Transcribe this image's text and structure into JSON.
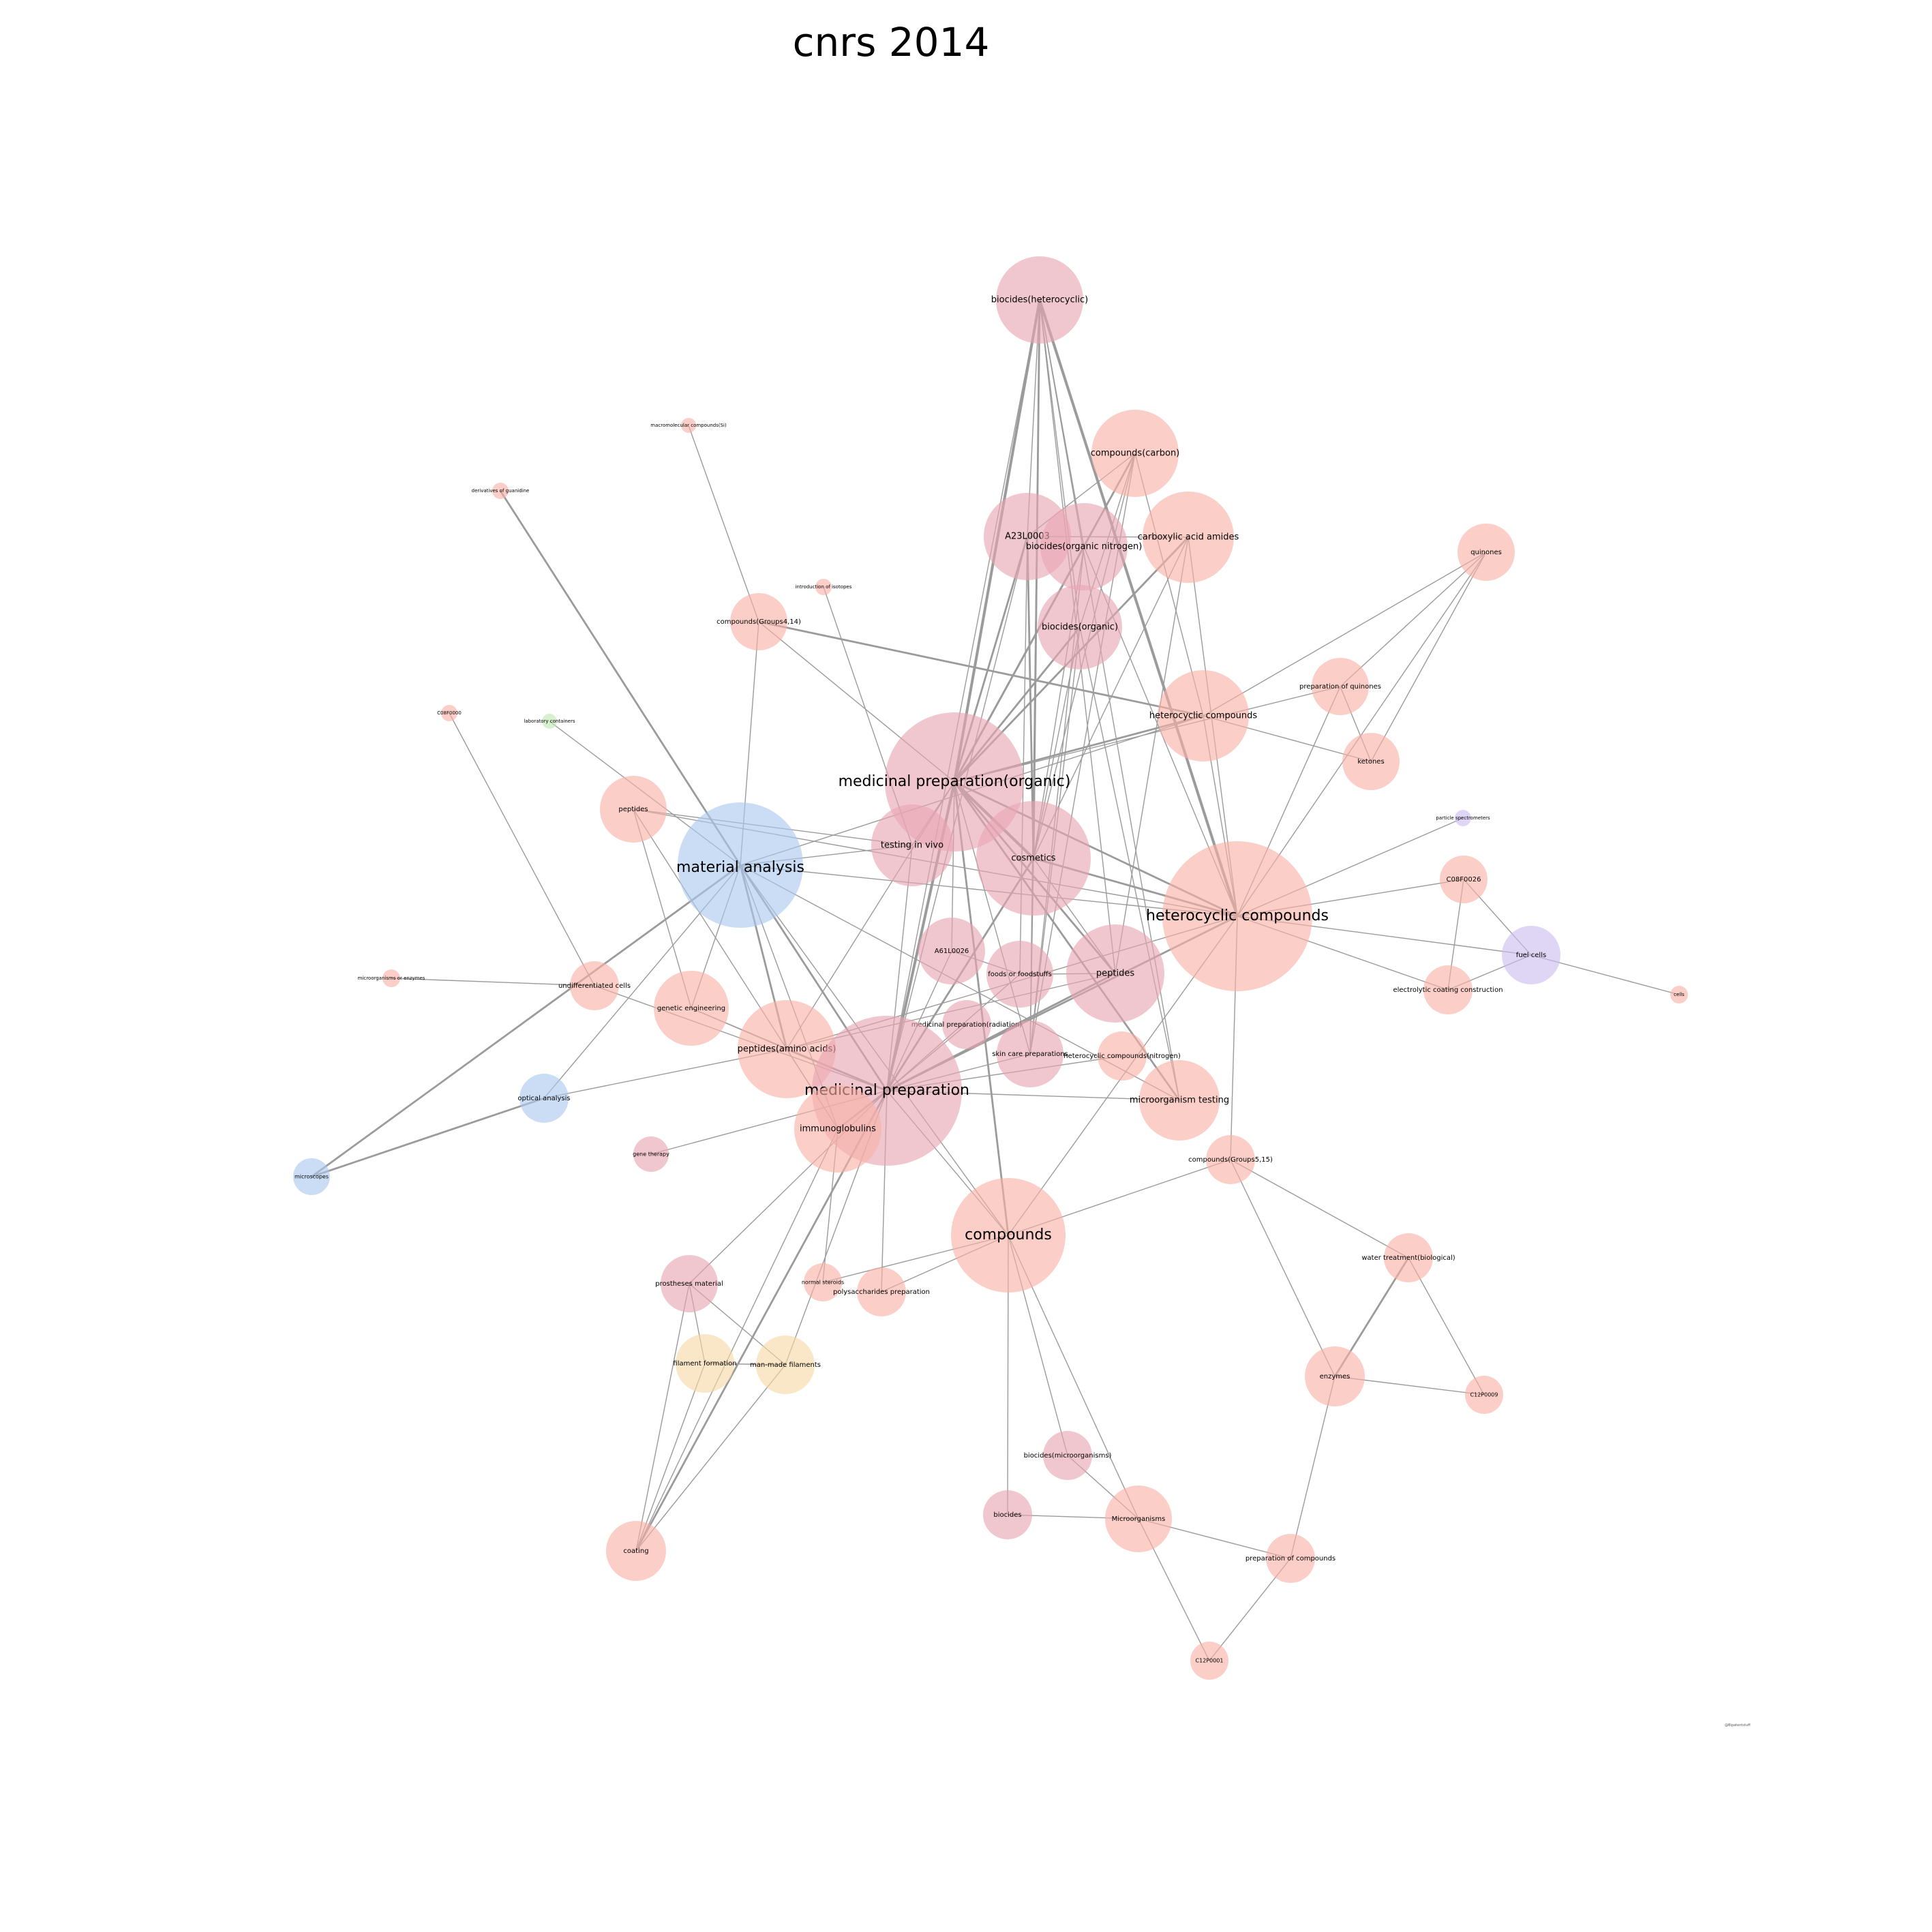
{
  "title": "cnrs 2014",
  "credit": "@Bipatentstuff",
  "colors": {
    "pink": "#e8a4b1",
    "salmon": "#f9b1a6",
    "blue": "#a9c8ef",
    "lavender": "#cbbdef",
    "peach": "#f7d9a6",
    "green": "#bfe6b0",
    "edge": "#9b9b9b"
  },
  "nodes": [
    {
      "id": "biocides_het",
      "label": "biocides(heterocyclic)",
      "color": "pink",
      "size": "l"
    },
    {
      "id": "comp_carbon",
      "label": "compounds(carbon)",
      "color": "salmon",
      "size": "l"
    },
    {
      "id": "a23l",
      "label": "A23L0003",
      "color": "pink",
      "size": "l"
    },
    {
      "id": "biocides_orgn",
      "label": "biocides(organic nitrogen)",
      "color": "pink",
      "size": "l"
    },
    {
      "id": "carbox",
      "label": "carboxylic acid amides",
      "color": "salmon",
      "size": "l"
    },
    {
      "id": "quinones",
      "label": "quinones",
      "color": "salmon",
      "size": "m"
    },
    {
      "id": "biocides_org",
      "label": "biocides(organic)",
      "color": "pink",
      "size": "l"
    },
    {
      "id": "macro_si",
      "label": "macromolecular compounds(Si)",
      "color": "salmon",
      "size": "xs"
    },
    {
      "id": "guanidine",
      "label": "derivatives of guanidine",
      "color": "salmon",
      "size": "xs"
    },
    {
      "id": "isotopes",
      "label": "introduction of isotopes",
      "color": "salmon",
      "size": "xs"
    },
    {
      "id": "comp_g414",
      "label": "compounds(Groups4,14)",
      "color": "salmon",
      "size": "m"
    },
    {
      "id": "prep_quin",
      "label": "preparation of quinones",
      "color": "salmon",
      "size": "m"
    },
    {
      "id": "het_comp_small",
      "label": "heterocyclic compounds",
      "color": "salmon",
      "size": "l"
    },
    {
      "id": "c08f0000",
      "label": "C08F0000",
      "color": "salmon",
      "size": "xs"
    },
    {
      "id": "lab_cont",
      "label": "laboratory containers",
      "color": "green",
      "size": "xs"
    },
    {
      "id": "ketones",
      "label": "ketones",
      "color": "salmon",
      "size": "m"
    },
    {
      "id": "med_prep_org",
      "label": "medicinal preparation(organic)",
      "color": "pink",
      "size": "xl"
    },
    {
      "id": "peptides_small",
      "label": "peptides",
      "color": "salmon",
      "size": "m"
    },
    {
      "id": "particle",
      "label": "particle spectrometers",
      "color": "lavender",
      "size": "xs"
    },
    {
      "id": "testing_vivo",
      "label": "testing in vivo",
      "color": "pink",
      "size": "l"
    },
    {
      "id": "cosmetics",
      "label": "cosmetics",
      "color": "pink",
      "size": "l"
    },
    {
      "id": "material",
      "label": "material analysis",
      "color": "blue",
      "size": "xl"
    },
    {
      "id": "c08f0026",
      "label": "C08F0026",
      "color": "salmon",
      "size": "m"
    },
    {
      "id": "het_comp_big",
      "label": "heterocyclic compounds",
      "color": "salmon",
      "size": "xl"
    },
    {
      "id": "a61l",
      "label": "A61L0026",
      "color": "pink",
      "size": "m"
    },
    {
      "id": "fuel",
      "label": "fuel cells",
      "color": "lavender",
      "size": "m"
    },
    {
      "id": "foods",
      "label": "foods or foodstuffs",
      "color": "pink",
      "size": "m"
    },
    {
      "id": "peptides_big",
      "label": "peptides",
      "color": "pink",
      "size": "l"
    },
    {
      "id": "microorg_enz",
      "label": "microorganisms or enzymes",
      "color": "salmon",
      "size": "xs"
    },
    {
      "id": "undiff",
      "label": "undifferentiated cells",
      "color": "salmon",
      "size": "m"
    },
    {
      "id": "electro",
      "label": "electrolytic coating construction",
      "color": "salmon",
      "size": "m"
    },
    {
      "id": "cells",
      "label": "cells",
      "color": "salmon",
      "size": "xs"
    },
    {
      "id": "genetic",
      "label": "genetic engineering",
      "color": "salmon",
      "size": "m"
    },
    {
      "id": "med_prep_rad",
      "label": "medicinal preparation(radiation)",
      "color": "pink",
      "size": "m"
    },
    {
      "id": "pept_amino",
      "label": "peptides(amino acids)",
      "color": "salmon",
      "size": "l"
    },
    {
      "id": "skin",
      "label": "skin care preparations",
      "color": "pink",
      "size": "m"
    },
    {
      "id": "het_nitro",
      "label": "heterocyclic compounds(nitrogen)",
      "color": "salmon",
      "size": "m"
    },
    {
      "id": "med_prep",
      "label": "medicinal preparation",
      "color": "pink",
      "size": "xl"
    },
    {
      "id": "microorg_test",
      "label": "microorganism testing",
      "color": "salmon",
      "size": "l"
    },
    {
      "id": "optical",
      "label": "optical analysis",
      "color": "blue",
      "size": "m"
    },
    {
      "id": "immuno",
      "label": "immunoglobulins",
      "color": "salmon",
      "size": "l"
    },
    {
      "id": "gene_ther",
      "label": "gene therapy",
      "color": "pink",
      "size": "s"
    },
    {
      "id": "comp_g515",
      "label": "compounds(Groups5,15)",
      "color": "salmon",
      "size": "m"
    },
    {
      "id": "microscopes",
      "label": "microscopes",
      "color": "blue",
      "size": "s"
    },
    {
      "id": "compounds",
      "label": "compounds",
      "color": "salmon",
      "size": "xl"
    },
    {
      "id": "water",
      "label": "water treatment(biological)",
      "color": "salmon",
      "size": "m"
    },
    {
      "id": "prostheses",
      "label": "prostheses material",
      "color": "pink",
      "size": "m"
    },
    {
      "id": "normal_ster",
      "label": "normal steroids",
      "color": "salmon",
      "size": "s"
    },
    {
      "id": "polysacc",
      "label": "polysaccharides preparation",
      "color": "salmon",
      "size": "m"
    },
    {
      "id": "filament",
      "label": "filament formation",
      "color": "peach",
      "size": "m"
    },
    {
      "id": "manmade",
      "label": "man-made filaments",
      "color": "peach",
      "size": "m"
    },
    {
      "id": "enzymes",
      "label": "enzymes",
      "color": "salmon",
      "size": "m"
    },
    {
      "id": "c12p0009",
      "label": "C12P0009",
      "color": "salmon",
      "size": "s"
    },
    {
      "id": "biocides_micro",
      "label": "biocides(microorganisms)",
      "color": "pink",
      "size": "m"
    },
    {
      "id": "biocides",
      "label": "biocides",
      "color": "pink",
      "size": "m"
    },
    {
      "id": "microorganisms",
      "label": "Microorganisms",
      "color": "salmon",
      "size": "m"
    },
    {
      "id": "prep_comp",
      "label": "preparation of compounds",
      "color": "salmon",
      "size": "m"
    },
    {
      "id": "coating",
      "label": "coating",
      "color": "salmon",
      "size": "m"
    },
    {
      "id": "c12p0001",
      "label": "C12P0001",
      "color": "salmon",
      "size": "s"
    }
  ],
  "edges": [
    [
      "biocides_het",
      "med_prep_org",
      3
    ],
    [
      "biocides_het",
      "cosmetics",
      2
    ],
    [
      "biocides_het",
      "het_comp_big",
      3
    ],
    [
      "biocides_het",
      "a23l",
      1
    ],
    [
      "biocides_het",
      "biocides_orgn",
      1
    ],
    [
      "biocides_het",
      "biocides_org",
      1
    ],
    [
      "biocides_het",
      "skin",
      1
    ],
    [
      "biocides_het",
      "med_prep",
      1
    ],
    [
      "biocides_het",
      "peptides_big",
      1
    ],
    [
      "biocides_het",
      "microorg_test",
      1
    ],
    [
      "comp_carbon",
      "med_prep_org",
      2
    ],
    [
      "comp_carbon",
      "cosmetics",
      1
    ],
    [
      "comp_carbon",
      "biocides_org",
      1
    ],
    [
      "comp_carbon",
      "a23l",
      1
    ],
    [
      "comp_carbon",
      "het_comp_small",
      1
    ],
    [
      "comp_carbon",
      "skin",
      1
    ],
    [
      "a23l",
      "med_prep_org",
      2
    ],
    [
      "a23l",
      "cosmetics",
      2
    ],
    [
      "a23l",
      "carbox",
      1
    ],
    [
      "a23l",
      "med_prep",
      1
    ],
    [
      "a23l",
      "foods",
      1
    ],
    [
      "biocides_orgn",
      "med_prep_org",
      2
    ],
    [
      "biocides_orgn",
      "cosmetics",
      1
    ],
    [
      "biocides_orgn",
      "skin",
      1
    ],
    [
      "biocides_orgn",
      "het_comp_big",
      1
    ],
    [
      "carbox",
      "med_prep_org",
      2
    ],
    [
      "carbox",
      "cosmetics",
      1
    ],
    [
      "carbox",
      "het_comp_big",
      1
    ],
    [
      "carbox",
      "peptides_big",
      1
    ],
    [
      "quinones",
      "prep_quin",
      1
    ],
    [
      "quinones",
      "ketones",
      1
    ],
    [
      "quinones",
      "het_comp_small",
      1
    ],
    [
      "quinones",
      "het_comp_big",
      1
    ],
    [
      "biocides_org",
      "med_prep_org",
      2
    ],
    [
      "biocides_org",
      "cosmetics",
      1
    ],
    [
      "biocides_org",
      "skin",
      1
    ],
    [
      "biocides_org",
      "microorg_test",
      1
    ],
    [
      "macro_si",
      "comp_g414",
      1
    ],
    [
      "guanidine",
      "material",
      2
    ],
    [
      "isotopes",
      "testing_vivo",
      1
    ],
    [
      "comp_g414",
      "het_comp_small",
      2
    ],
    [
      "comp_g414",
      "material",
      1
    ],
    [
      "comp_g414",
      "med_prep_org",
      1
    ],
    [
      "prep_quin",
      "ketones",
      1
    ],
    [
      "prep_quin",
      "het_comp_big",
      1
    ],
    [
      "prep_quin",
      "med_prep_org",
      1
    ],
    [
      "het_comp_small",
      "ketones",
      1
    ],
    [
      "het_comp_small",
      "med_prep_org",
      2
    ],
    [
      "het_comp_small",
      "material",
      1
    ],
    [
      "het_comp_small",
      "het_comp_big",
      1
    ],
    [
      "c08f0000",
      "undiff",
      1
    ],
    [
      "lab_cont",
      "material",
      1
    ],
    [
      "med_prep_org",
      "cosmetics",
      3
    ],
    [
      "med_prep_org",
      "med_prep",
      3
    ],
    [
      "med_prep_org",
      "het_comp_big",
      2
    ],
    [
      "med_prep_org",
      "peptides_big",
      2
    ],
    [
      "med_prep_org",
      "testing_vivo",
      1
    ],
    [
      "med_prep_org",
      "a61l",
      1
    ],
    [
      "med_prep_org",
      "pept_amino",
      1
    ],
    [
      "med_prep_org",
      "compounds",
      2
    ],
    [
      "med_prep_org",
      "skin",
      1
    ],
    [
      "med_prep_org",
      "microorg_test",
      2
    ],
    [
      "peptides_small",
      "testing_vivo",
      1
    ],
    [
      "peptides_small",
      "genetic",
      1
    ],
    [
      "peptides_small",
      "immuno",
      1
    ],
    [
      "peptides_small",
      "het_comp_big",
      1
    ],
    [
      "particle",
      "het_comp_big",
      1
    ],
    [
      "testing_vivo",
      "material",
      1
    ],
    [
      "testing_vivo",
      "med_prep",
      1
    ],
    [
      "cosmetics",
      "med_prep",
      2
    ],
    [
      "cosmetics",
      "het_comp_big",
      2
    ],
    [
      "cosmetics",
      "skin",
      1
    ],
    [
      "cosmetics",
      "peptides_big",
      1
    ],
    [
      "material",
      "optical",
      1
    ],
    [
      "material",
      "microscopes",
      2
    ],
    [
      "material",
      "med_prep",
      2
    ],
    [
      "material",
      "pept_amino",
      2
    ],
    [
      "material",
      "het_comp_big",
      1
    ],
    [
      "material",
      "compounds",
      1
    ],
    [
      "material",
      "genetic",
      1
    ],
    [
      "material",
      "immuno",
      1
    ],
    [
      "material",
      "microorg_test",
      1
    ],
    [
      "c08f0026",
      "het_comp_big",
      1
    ],
    [
      "c08f0026",
      "fuel",
      1
    ],
    [
      "c08f0026",
      "electro",
      1
    ],
    [
      "het_comp_big",
      "med_prep",
      2
    ],
    [
      "het_comp_big",
      "pept_amino",
      1
    ],
    [
      "het_comp_big",
      "fuel",
      1
    ],
    [
      "het_comp_big",
      "electro",
      1
    ],
    [
      "het_comp_big",
      "compounds",
      1
    ],
    [
      "het_comp_big",
      "comp_g515",
      1
    ],
    [
      "a61l",
      "foods",
      1
    ],
    [
      "a61l",
      "med_prep",
      1
    ],
    [
      "fuel",
      "cells",
      1
    ],
    [
      "fuel",
      "electro",
      1
    ],
    [
      "foods",
      "peptides_big",
      1
    ],
    [
      "foods",
      "med_prep",
      1
    ],
    [
      "peptides_big",
      "med_prep",
      2
    ],
    [
      "peptides_big",
      "pept_amino",
      1
    ],
    [
      "microorg_enz",
      "undiff",
      1
    ],
    [
      "undiff",
      "med_prep",
      1
    ],
    [
      "genetic",
      "pept_amino",
      1
    ],
    [
      "genetic",
      "med_prep",
      1
    ],
    [
      "med_prep_rad",
      "med_prep",
      1
    ],
    [
      "pept_amino",
      "med_prep",
      2
    ],
    [
      "pept_amino",
      "immuno",
      1
    ],
    [
      "pept_amino",
      "optical",
      1
    ],
    [
      "skin",
      "med_prep",
      1
    ],
    [
      "het_nitro",
      "med_prep",
      1
    ],
    [
      "med_prep",
      "microorg_test",
      1
    ],
    [
      "med_prep",
      "immuno",
      2
    ],
    [
      "med_prep",
      "gene_ther",
      1
    ],
    [
      "med_prep",
      "compounds",
      1
    ],
    [
      "med_prep",
      "prostheses",
      1
    ],
    [
      "med_prep",
      "polysacc",
      1
    ],
    [
      "med_prep",
      "coating",
      2
    ],
    [
      "med_prep",
      "manmade",
      1
    ],
    [
      "optical",
      "microscopes",
      2
    ],
    [
      "immuno",
      "coating",
      1
    ],
    [
      "immuno",
      "normal_ster",
      1
    ],
    [
      "comp_g515",
      "compounds",
      1
    ],
    [
      "comp_g515",
      "water",
      1
    ],
    [
      "comp_g515",
      "enzymes",
      1
    ],
    [
      "compounds",
      "normal_ster",
      1
    ],
    [
      "compounds",
      "polysacc",
      1
    ],
    [
      "compounds",
      "biocides_micro",
      1
    ],
    [
      "compounds",
      "biocides",
      1
    ],
    [
      "compounds",
      "microorganisms",
      1
    ],
    [
      "water",
      "enzymes",
      2
    ],
    [
      "water",
      "c12p0009",
      1
    ],
    [
      "prostheses",
      "filament",
      1
    ],
    [
      "prostheses",
      "manmade",
      1
    ],
    [
      "prostheses",
      "coating",
      1
    ],
    [
      "filament",
      "coating",
      1
    ],
    [
      "filament",
      "manmade",
      1
    ],
    [
      "manmade",
      "coating",
      1
    ],
    [
      "enzymes",
      "c12p0009",
      1
    ],
    [
      "enzymes",
      "prep_comp",
      1
    ],
    [
      "biocides_micro",
      "microorganisms",
      1
    ],
    [
      "biocides",
      "microorganisms",
      1
    ],
    [
      "microorganisms",
      "prep_comp",
      1
    ],
    [
      "microorganisms",
      "c12p0001",
      1
    ],
    [
      "prep_comp",
      "c12p0001",
      1
    ]
  ]
}
